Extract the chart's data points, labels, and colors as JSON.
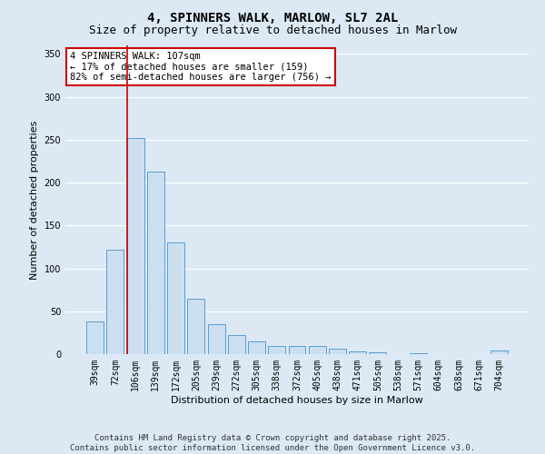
{
  "title": "4, SPINNERS WALK, MARLOW, SL7 2AL",
  "subtitle": "Size of property relative to detached houses in Marlow",
  "xlabel": "Distribution of detached houses by size in Marlow",
  "ylabel": "Number of detached properties",
  "categories": [
    "39sqm",
    "72sqm",
    "106sqm",
    "139sqm",
    "172sqm",
    "205sqm",
    "239sqm",
    "272sqm",
    "305sqm",
    "338sqm",
    "372sqm",
    "405sqm",
    "438sqm",
    "471sqm",
    "505sqm",
    "538sqm",
    "571sqm",
    "604sqm",
    "638sqm",
    "671sqm",
    "704sqm"
  ],
  "values": [
    38,
    122,
    252,
    213,
    130,
    65,
    35,
    22,
    15,
    10,
    10,
    10,
    6,
    3,
    2,
    0,
    1,
    0,
    0,
    0,
    4
  ],
  "bar_color": "#ccdff0",
  "bar_edge_color": "#5b9bd5",
  "background_color": "#dce9f5",
  "grid_color": "#ffffff",
  "property_line_index": 2,
  "annotation_text": "4 SPINNERS WALK: 107sqm\n← 17% of detached houses are smaller (159)\n82% of semi-detached houses are larger (756) →",
  "annotation_box_color": "#ffffff",
  "annotation_box_edge_color": "#cc0000",
  "ylim": [
    0,
    360
  ],
  "yticks": [
    0,
    50,
    100,
    150,
    200,
    250,
    300,
    350
  ],
  "footer_text": "Contains HM Land Registry data © Crown copyright and database right 2025.\nContains public sector information licensed under the Open Government Licence v3.0.",
  "title_fontsize": 10,
  "subtitle_fontsize": 9,
  "axis_label_fontsize": 8,
  "tick_fontsize": 7,
  "annotation_fontsize": 7.5,
  "footer_fontsize": 6.5
}
